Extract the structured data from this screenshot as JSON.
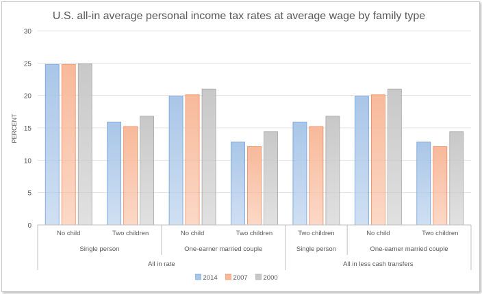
{
  "chart_data": {
    "type": "bar",
    "title": "U.S. all-in  average personal income tax rates at average wage by family type",
    "ylabel": "PERCENT",
    "xlabel": "",
    "ylim": [
      0,
      30
    ],
    "yticks": [
      0,
      5,
      10,
      15,
      20,
      25,
      30
    ],
    "grid": true,
    "legend_position": "bottom",
    "categories": [
      "No child",
      "Two children",
      "No child",
      "Two children",
      "Two children",
      "No child",
      "Two children"
    ],
    "group_level2": [
      {
        "label": "Single person",
        "span": 2
      },
      {
        "label": "One-earner married couple",
        "span": 2
      },
      {
        "label": "Single person",
        "span": 1
      },
      {
        "label": "One-earner married couple",
        "span": 2
      }
    ],
    "group_level3": [
      {
        "label": "All in rate",
        "span": 4
      },
      {
        "label": "All in less cash transfers",
        "span": 3
      }
    ],
    "series": [
      {
        "name": "2014",
        "color": "#a9c6e8",
        "values": [
          24.8,
          15.9,
          19.9,
          12.8,
          15.9,
          19.9,
          12.8
        ]
      },
      {
        "name": "2007",
        "color": "#f8b99a",
        "values": [
          24.8,
          15.2,
          20.1,
          12.1,
          15.2,
          20.1,
          12.1
        ]
      },
      {
        "name": "2000",
        "color": "#c8c8c8",
        "values": [
          24.9,
          16.8,
          21.0,
          14.4,
          16.8,
          21.0,
          14.4
        ]
      }
    ]
  }
}
